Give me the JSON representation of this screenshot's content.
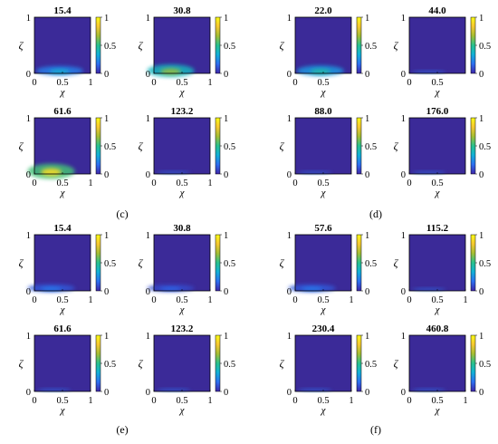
{
  "colors": {
    "field_background": "#3b2a98",
    "colormap": [
      "#3e26a8",
      "#2d6ff0",
      "#12b1d6",
      "#27c18e",
      "#a4bd33",
      "#f6c831",
      "#f9fb15"
    ]
  },
  "chart_data": [
    {
      "panel": "(c)",
      "title": "15.4",
      "type": "heatmap",
      "xlabel": "χ",
      "ylabel": "ζ",
      "xlim": [
        0,
        1
      ],
      "ylim": [
        0,
        1
      ],
      "x_ticks": [
        "0",
        "0.5",
        "1"
      ],
      "y_ticks": [
        "0",
        "1"
      ],
      "colorbar": {
        "range": [
          0,
          1
        ],
        "ticks": [
          "0",
          "0.5",
          "1"
        ]
      },
      "max_intensity": 0.35
    },
    {
      "panel": "(c)",
      "title": "30.8",
      "type": "heatmap",
      "xlabel": "χ",
      "ylabel": "ζ",
      "xlim": [
        0,
        1
      ],
      "ylim": [
        0,
        1
      ],
      "x_ticks": [
        "0",
        "0.5",
        "1"
      ],
      "y_ticks": [
        "0",
        "1"
      ],
      "colorbar": {
        "range": [
          0,
          1
        ],
        "ticks": [
          "0",
          "0.5",
          "1"
        ]
      },
      "max_intensity": 0.65
    },
    {
      "panel": "(c)",
      "title": "61.6",
      "type": "heatmap",
      "xlabel": "χ",
      "ylabel": "ζ",
      "xlim": [
        0,
        1
      ],
      "ylim": [
        0,
        1
      ],
      "x_ticks": [
        "0",
        "0.5",
        "1"
      ],
      "y_ticks": [
        "0",
        "1"
      ],
      "colorbar": {
        "range": [
          0,
          1
        ],
        "ticks": [
          "0",
          "0.5",
          "1"
        ]
      },
      "max_intensity": 0.9
    },
    {
      "panel": "(c)",
      "title": "123.2",
      "type": "heatmap",
      "xlabel": "χ",
      "ylabel": "ζ",
      "xlim": [
        0,
        1
      ],
      "ylim": [
        0,
        1
      ],
      "x_ticks": [
        "0",
        "0.5",
        "1"
      ],
      "y_ticks": [
        "0",
        "1"
      ],
      "colorbar": {
        "range": [
          0,
          1
        ],
        "ticks": [
          "0",
          "0.5",
          "1"
        ]
      },
      "max_intensity": 0.05
    },
    {
      "panel": "(d)",
      "title": "22.0",
      "type": "heatmap",
      "xlabel": "χ",
      "ylabel": "ζ",
      "xlim": [
        0,
        1
      ],
      "ylim": [
        0,
        1
      ],
      "x_ticks": [
        "0",
        "0.5"
      ],
      "y_ticks": [
        "0",
        "1"
      ],
      "colorbar": {
        "range": [
          0,
          1
        ],
        "ticks": [
          "0",
          "0.5",
          "1"
        ]
      },
      "max_intensity": 0.45
    },
    {
      "panel": "(d)",
      "title": "44.0",
      "type": "heatmap",
      "xlabel": "χ",
      "ylabel": "ζ",
      "xlim": [
        0,
        1
      ],
      "ylim": [
        0,
        1
      ],
      "x_ticks": [
        "0",
        "0.5"
      ],
      "y_ticks": [
        "0",
        "1"
      ],
      "colorbar": {
        "range": [
          0,
          1
        ],
        "ticks": [
          "0",
          "0.5",
          "1"
        ]
      },
      "max_intensity": 0.04
    },
    {
      "panel": "(d)",
      "title": "88.0",
      "type": "heatmap",
      "xlabel": "χ",
      "ylabel": "ζ",
      "xlim": [
        0,
        1
      ],
      "ylim": [
        0,
        1
      ],
      "x_ticks": [
        "0",
        "0.5"
      ],
      "y_ticks": [
        "0",
        "1"
      ],
      "colorbar": {
        "range": [
          0,
          1
        ],
        "ticks": [
          "0",
          "0.5",
          "1"
        ]
      },
      "max_intensity": 0.03
    },
    {
      "panel": "(d)",
      "title": "176.0",
      "type": "heatmap",
      "xlabel": "χ",
      "ylabel": "ζ",
      "xlim": [
        0,
        1
      ],
      "ylim": [
        0,
        1
      ],
      "x_ticks": [
        "0",
        "0.5"
      ],
      "y_ticks": [
        "0",
        "1"
      ],
      "colorbar": {
        "range": [
          0,
          1
        ],
        "ticks": [
          "0",
          "0.5",
          "1"
        ]
      },
      "max_intensity": 0.03
    },
    {
      "panel": "(e)",
      "title": "15.4",
      "type": "heatmap",
      "xlabel": "χ",
      "ylabel": "ζ",
      "xlim": [
        0,
        1
      ],
      "ylim": [
        0,
        1
      ],
      "x_ticks": [
        "0",
        "0.5",
        "1"
      ],
      "y_ticks": [
        "0",
        "1"
      ],
      "colorbar": {
        "range": [
          0,
          1
        ],
        "ticks": [
          "0",
          "0.5",
          "1"
        ]
      },
      "max_intensity": 0.2
    },
    {
      "panel": "(e)",
      "title": "30.8",
      "type": "heatmap",
      "xlabel": "χ",
      "ylabel": "ζ",
      "xlim": [
        0,
        1
      ],
      "ylim": [
        0,
        1
      ],
      "x_ticks": [
        "0",
        "0.5",
        "1"
      ],
      "y_ticks": [
        "0",
        "1"
      ],
      "colorbar": {
        "range": [
          0,
          1
        ],
        "ticks": [
          "0",
          "0.5",
          "1"
        ]
      },
      "max_intensity": 0.15
    },
    {
      "panel": "(e)",
      "title": "61.6",
      "type": "heatmap",
      "xlabel": "χ",
      "ylabel": "ζ",
      "xlim": [
        0,
        1
      ],
      "ylim": [
        0,
        1
      ],
      "x_ticks": [
        "0",
        "0.5",
        "1"
      ],
      "y_ticks": [
        "0",
        "1"
      ],
      "colorbar": {
        "range": [
          0,
          1
        ],
        "ticks": [
          "0",
          "0.5",
          "1"
        ]
      },
      "max_intensity": 0.02
    },
    {
      "panel": "(e)",
      "title": "123.2",
      "type": "heatmap",
      "xlabel": "χ",
      "ylabel": "ζ",
      "xlim": [
        0,
        1
      ],
      "ylim": [
        0,
        1
      ],
      "x_ticks": [
        "0",
        "0.5",
        "1"
      ],
      "y_ticks": [
        "0",
        "1"
      ],
      "colorbar": {
        "range": [
          0,
          1
        ],
        "ticks": [
          "0",
          "0.5",
          "1"
        ]
      },
      "max_intensity": 0.02
    },
    {
      "panel": "(f)",
      "title": "57.6",
      "type": "heatmap",
      "xlabel": "χ",
      "ylabel": "ζ",
      "xlim": [
        0,
        1
      ],
      "ylim": [
        0,
        1
      ],
      "x_ticks": [
        "0",
        "0.5",
        "1"
      ],
      "y_ticks": [
        "0",
        "1"
      ],
      "colorbar": {
        "range": [
          0,
          1
        ],
        "ticks": [
          "0",
          "0.5",
          "1"
        ]
      },
      "max_intensity": 0.2
    },
    {
      "panel": "(f)",
      "title": "115.2",
      "type": "heatmap",
      "xlabel": "χ",
      "ylabel": "ζ",
      "xlim": [
        0,
        1
      ],
      "ylim": [
        0,
        1
      ],
      "x_ticks": [
        "0",
        "0.5",
        "1"
      ],
      "y_ticks": [
        "0",
        "1"
      ],
      "colorbar": {
        "range": [
          0,
          1
        ],
        "ticks": [
          "0",
          "0.5",
          "1"
        ]
      },
      "max_intensity": 0.03
    },
    {
      "panel": "(f)",
      "title": "230.4",
      "type": "heatmap",
      "xlabel": "χ",
      "ylabel": "ζ",
      "xlim": [
        0,
        1
      ],
      "ylim": [
        0,
        1
      ],
      "x_ticks": [
        "0",
        "0.5",
        "1"
      ],
      "y_ticks": [
        "0",
        "1"
      ],
      "colorbar": {
        "range": [
          0,
          1
        ],
        "ticks": [
          "0",
          "0.5",
          "1"
        ]
      },
      "max_intensity": 0.03
    },
    {
      "panel": "(f)",
      "title": "460.8",
      "type": "heatmap",
      "xlabel": "χ",
      "ylabel": "ζ",
      "xlim": [
        0,
        1
      ],
      "ylim": [
        0,
        1
      ],
      "x_ticks": [
        "0",
        "0.5",
        "1"
      ],
      "y_ticks": [
        "0",
        "1"
      ],
      "colorbar": {
        "range": [
          0,
          1
        ],
        "ticks": [
          "0",
          "0.5",
          "1"
        ]
      },
      "max_intensity": 0.02
    }
  ],
  "panel_labels": [
    "(c)",
    "(d)",
    "(e)",
    "(f)"
  ]
}
